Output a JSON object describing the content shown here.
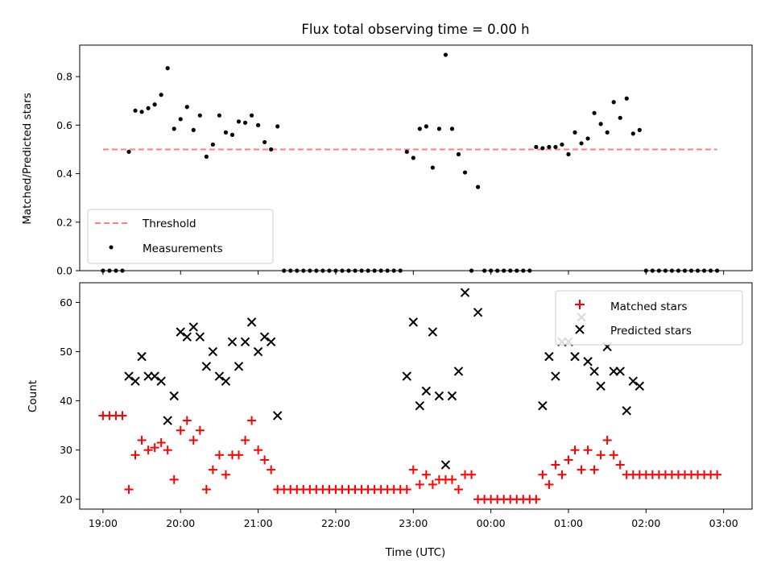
{
  "chart_data": [
    {
      "type": "scatter",
      "title": "Flux total observing time = 0.00 h",
      "xlabel": "",
      "ylabel": "Matched/Predicted stars",
      "xlim": [
        "18:42",
        "03:22"
      ],
      "ylim": [
        0,
        0.93
      ],
      "yticks": [
        "0.0",
        "0.2",
        "0.4",
        "0.6",
        "0.8"
      ],
      "legend_placement": "lower-left",
      "threshold": {
        "name": "Threshold",
        "value": 0.5,
        "x_range": [
          "19:00",
          "02:55"
        ],
        "color": "#ff7f7f"
      },
      "series": [
        {
          "name": "Measurements",
          "color": "#000000",
          "points": [
            [
              "19:00",
              0.0
            ],
            [
              "19:05",
              0.0
            ],
            [
              "19:10",
              0.0
            ],
            [
              "19:15",
              0.0
            ],
            [
              "19:20",
              0.49
            ],
            [
              "19:25",
              0.66
            ],
            [
              "19:30",
              0.655
            ],
            [
              "19:35",
              0.67
            ],
            [
              "19:40",
              0.685
            ],
            [
              "19:45",
              0.725
            ],
            [
              "19:50",
              0.835
            ],
            [
              "19:55",
              0.585
            ],
            [
              "20:00",
              0.625
            ],
            [
              "20:05",
              0.675
            ],
            [
              "20:10",
              0.58
            ],
            [
              "20:15",
              0.64
            ],
            [
              "20:20",
              0.47
            ],
            [
              "20:25",
              0.52
            ],
            [
              "20:30",
              0.64
            ],
            [
              "20:35",
              0.57
            ],
            [
              "20:40",
              0.56
            ],
            [
              "20:45",
              0.615
            ],
            [
              "20:50",
              0.61
            ],
            [
              "20:55",
              0.64
            ],
            [
              "21:00",
              0.6
            ],
            [
              "21:05",
              0.53
            ],
            [
              "21:10",
              0.5
            ],
            [
              "21:15",
              0.595
            ],
            [
              "21:20",
              0.0
            ],
            [
              "21:25",
              0.0
            ],
            [
              "21:30",
              0.0
            ],
            [
              "21:35",
              0.0
            ],
            [
              "21:40",
              0.0
            ],
            [
              "21:45",
              0.0
            ],
            [
              "21:50",
              0.0
            ],
            [
              "21:55",
              0.0
            ],
            [
              "22:00",
              0.0
            ],
            [
              "22:05",
              0.0
            ],
            [
              "22:10",
              0.0
            ],
            [
              "22:15",
              0.0
            ],
            [
              "22:20",
              0.0
            ],
            [
              "22:25",
              0.0
            ],
            [
              "22:30",
              0.0
            ],
            [
              "22:35",
              0.0
            ],
            [
              "22:40",
              0.0
            ],
            [
              "22:45",
              0.0
            ],
            [
              "22:50",
              0.0
            ],
            [
              "22:55",
              0.49
            ],
            [
              "23:00",
              0.465
            ],
            [
              "23:05",
              0.585
            ],
            [
              "23:10",
              0.595
            ],
            [
              "23:15",
              0.425
            ],
            [
              "23:20",
              0.585
            ],
            [
              "23:25",
              0.89
            ],
            [
              "23:30",
              0.585
            ],
            [
              "23:35",
              0.48
            ],
            [
              "23:40",
              0.405
            ],
            [
              "23:45",
              0.0
            ],
            [
              "23:50",
              0.345
            ],
            [
              "23:55",
              0.0
            ],
            [
              "00:00",
              0.0
            ],
            [
              "00:05",
              0.0
            ],
            [
              "00:10",
              0.0
            ],
            [
              "00:15",
              0.0
            ],
            [
              "00:20",
              0.0
            ],
            [
              "00:25",
              0.0
            ],
            [
              "00:30",
              0.0
            ],
            [
              "00:35",
              0.51
            ],
            [
              "00:40",
              0.505
            ],
            [
              "00:45",
              0.51
            ],
            [
              "00:50",
              0.51
            ],
            [
              "00:55",
              0.52
            ],
            [
              "01:00",
              0.48
            ],
            [
              "01:05",
              0.57
            ],
            [
              "01:10",
              0.525
            ],
            [
              "01:15",
              0.545
            ],
            [
              "01:20",
              0.65
            ],
            [
              "01:25",
              0.605
            ],
            [
              "01:30",
              0.57
            ],
            [
              "01:35",
              0.695
            ],
            [
              "01:40",
              0.63
            ],
            [
              "01:45",
              0.71
            ],
            [
              "01:50",
              0.565
            ],
            [
              "01:55",
              0.58
            ],
            [
              "02:00",
              0.0
            ],
            [
              "02:05",
              0.0
            ],
            [
              "02:10",
              0.0
            ],
            [
              "02:15",
              0.0
            ],
            [
              "02:20",
              0.0
            ],
            [
              "02:25",
              0.0
            ],
            [
              "02:30",
              0.0
            ],
            [
              "02:35",
              0.0
            ],
            [
              "02:40",
              0.0
            ],
            [
              "02:45",
              0.0
            ],
            [
              "02:50",
              0.0
            ],
            [
              "02:55",
              0.0
            ]
          ]
        }
      ]
    },
    {
      "type": "scatter",
      "title": "",
      "xlabel": "Time (UTC)",
      "ylabel": "Count",
      "xlim": [
        "18:42",
        "03:22"
      ],
      "ylim": [
        18,
        64
      ],
      "yticks": [
        "20",
        "30",
        "40",
        "50",
        "60"
      ],
      "xticks": [
        "19:00",
        "20:00",
        "21:00",
        "22:00",
        "23:00",
        "00:00",
        "01:00",
        "02:00",
        "03:00"
      ],
      "legend_placement": "upper-right",
      "series": [
        {
          "name": "Matched stars",
          "marker": "+",
          "color": "#ff0000",
          "points": [
            [
              "19:00",
              37
            ],
            [
              "19:05",
              37
            ],
            [
              "19:10",
              37
            ],
            [
              "19:15",
              37
            ],
            [
              "19:20",
              22
            ],
            [
              "19:25",
              29
            ],
            [
              "19:30",
              32
            ],
            [
              "19:35",
              30
            ],
            [
              "19:40",
              30.5
            ],
            [
              "19:45",
              31.5
            ],
            [
              "19:50",
              30
            ],
            [
              "19:55",
              24
            ],
            [
              "20:00",
              34
            ],
            [
              "20:05",
              36
            ],
            [
              "20:10",
              32
            ],
            [
              "20:15",
              34
            ],
            [
              "20:20",
              22
            ],
            [
              "20:25",
              26
            ],
            [
              "20:30",
              29
            ],
            [
              "20:35",
              25
            ],
            [
              "20:40",
              29
            ],
            [
              "20:45",
              29
            ],
            [
              "20:50",
              32
            ],
            [
              "20:55",
              36
            ],
            [
              "21:00",
              30
            ],
            [
              "21:05",
              28
            ],
            [
              "21:10",
              26
            ],
            [
              "21:15",
              22
            ],
            [
              "21:20",
              22
            ],
            [
              "21:25",
              22
            ],
            [
              "21:30",
              22
            ],
            [
              "21:35",
              22
            ],
            [
              "21:40",
              22
            ],
            [
              "21:45",
              22
            ],
            [
              "21:50",
              22
            ],
            [
              "21:55",
              22
            ],
            [
              "22:00",
              22
            ],
            [
              "22:05",
              22
            ],
            [
              "22:10",
              22
            ],
            [
              "22:15",
              22
            ],
            [
              "22:20",
              22
            ],
            [
              "22:25",
              22
            ],
            [
              "22:30",
              22
            ],
            [
              "22:35",
              22
            ],
            [
              "22:40",
              22
            ],
            [
              "22:45",
              22
            ],
            [
              "22:50",
              22
            ],
            [
              "22:55",
              22
            ],
            [
              "23:00",
              26
            ],
            [
              "23:05",
              23
            ],
            [
              "23:10",
              25
            ],
            [
              "23:15",
              23
            ],
            [
              "23:20",
              24
            ],
            [
              "23:25",
              24
            ],
            [
              "23:30",
              24
            ],
            [
              "23:35",
              22
            ],
            [
              "23:40",
              25
            ],
            [
              "23:45",
              25
            ],
            [
              "23:50",
              20
            ],
            [
              "23:55",
              20
            ],
            [
              "00:00",
              20
            ],
            [
              "00:05",
              20
            ],
            [
              "00:10",
              20
            ],
            [
              "00:15",
              20
            ],
            [
              "00:20",
              20
            ],
            [
              "00:25",
              20
            ],
            [
              "00:30",
              20
            ],
            [
              "00:35",
              20
            ],
            [
              "00:40",
              25
            ],
            [
              "00:45",
              23
            ],
            [
              "00:50",
              27
            ],
            [
              "00:55",
              25
            ],
            [
              "01:00",
              28
            ],
            [
              "01:05",
              30
            ],
            [
              "01:10",
              26
            ],
            [
              "01:15",
              30
            ],
            [
              "01:20",
              26
            ],
            [
              "01:25",
              29
            ],
            [
              "01:30",
              32
            ],
            [
              "01:35",
              29
            ],
            [
              "01:40",
              27
            ],
            [
              "01:45",
              25
            ],
            [
              "01:50",
              25
            ],
            [
              "01:55",
              25
            ],
            [
              "02:00",
              25
            ],
            [
              "02:05",
              25
            ],
            [
              "02:10",
              25
            ],
            [
              "02:15",
              25
            ],
            [
              "02:20",
              25
            ],
            [
              "02:25",
              25
            ],
            [
              "02:30",
              25
            ],
            [
              "02:35",
              25
            ],
            [
              "02:40",
              25
            ],
            [
              "02:45",
              25
            ],
            [
              "02:50",
              25
            ],
            [
              "02:55",
              25
            ]
          ]
        },
        {
          "name": "Predicted stars",
          "marker": "x",
          "color": "#000000",
          "points": [
            [
              "19:20",
              45
            ],
            [
              "19:25",
              44
            ],
            [
              "19:30",
              49
            ],
            [
              "19:35",
              45
            ],
            [
              "19:40",
              45
            ],
            [
              "19:45",
              44
            ],
            [
              "19:50",
              36
            ],
            [
              "19:55",
              41
            ],
            [
              "20:00",
              54
            ],
            [
              "20:05",
              53
            ],
            [
              "20:10",
              55
            ],
            [
              "20:15",
              53
            ],
            [
              "20:20",
              47
            ],
            [
              "20:25",
              50
            ],
            [
              "20:30",
              45
            ],
            [
              "20:35",
              44
            ],
            [
              "20:40",
              52
            ],
            [
              "20:45",
              47
            ],
            [
              "20:50",
              52
            ],
            [
              "20:55",
              56
            ],
            [
              "21:00",
              50
            ],
            [
              "21:05",
              53
            ],
            [
              "21:10",
              52
            ],
            [
              "21:15",
              37
            ],
            [
              "22:55",
              45
            ],
            [
              "23:00",
              56
            ],
            [
              "23:05",
              39
            ],
            [
              "23:10",
              42
            ],
            [
              "23:15",
              54
            ],
            [
              "23:20",
              41
            ],
            [
              "23:25",
              27
            ],
            [
              "23:30",
              41
            ],
            [
              "23:35",
              46
            ],
            [
              "23:40",
              62
            ],
            [
              "23:50",
              58
            ],
            [
              "00:40",
              39
            ],
            [
              "00:45",
              49
            ],
            [
              "00:50",
              45
            ],
            [
              "00:55",
              52
            ],
            [
              "01:00",
              52
            ],
            [
              "01:05",
              49
            ],
            [
              "01:10",
              57
            ],
            [
              "01:15",
              48
            ],
            [
              "01:20",
              46
            ],
            [
              "01:25",
              43
            ],
            [
              "01:30",
              51
            ],
            [
              "01:35",
              46
            ],
            [
              "01:40",
              46
            ],
            [
              "01:45",
              38
            ],
            [
              "01:50",
              44
            ],
            [
              "01:55",
              43
            ]
          ]
        }
      ]
    }
  ]
}
